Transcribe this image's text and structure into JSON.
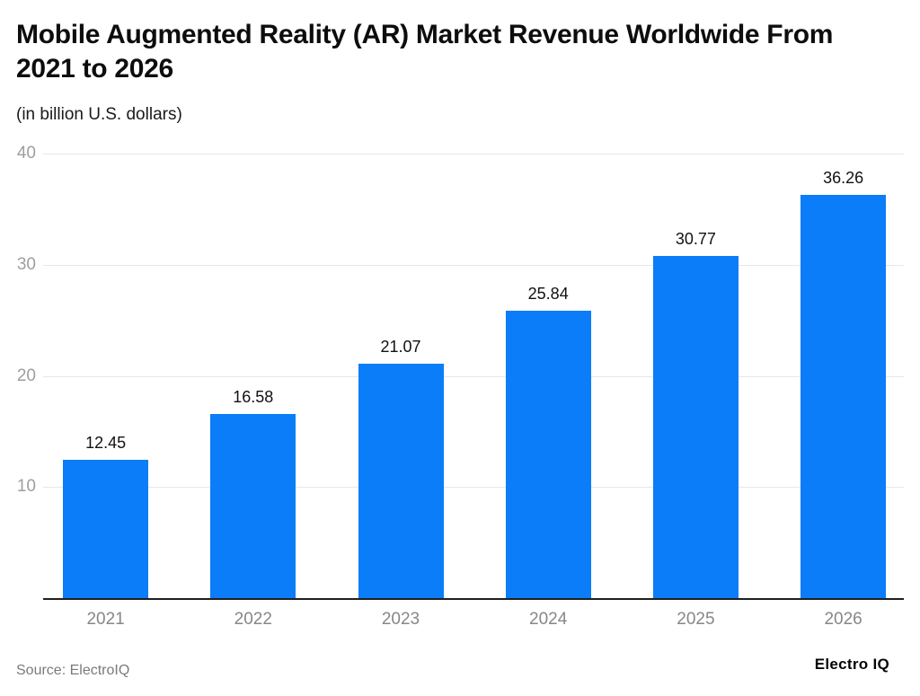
{
  "header": {
    "title": "Mobile Augmented Reality (AR) Market Revenue Worldwide From 2021 to 2026",
    "subtitle": "(in billion U.S. dollars)"
  },
  "footer": {
    "source": "Source: ElectroIQ",
    "brand": "Electro IQ"
  },
  "colors": {
    "bar": "#0b7df8",
    "gridline": "#e7e7e7",
    "axis_line": "#1f1f1f",
    "ytick_text": "#9e9e9e",
    "xtick_text": "#878787",
    "value_label_text": "#111111",
    "background": "#ffffff"
  },
  "chart_data": {
    "type": "bar",
    "title": "Mobile Augmented Reality (AR) Market Revenue Worldwide From 2021 to 2026",
    "subtitle": "(in billion U.S. dollars)",
    "categories": [
      "2021",
      "2022",
      "2023",
      "2024",
      "2025",
      "2026"
    ],
    "values": [
      12.45,
      16.58,
      21.07,
      25.84,
      30.77,
      36.26
    ],
    "value_labels": [
      "12.45",
      "16.58",
      "21.07",
      "25.84",
      "30.77",
      "36.26"
    ],
    "xlabel": "",
    "ylabel": "",
    "ylim": [
      0,
      40
    ],
    "yticks": [
      10,
      20,
      30,
      40
    ],
    "grid": true,
    "legend": false,
    "bar_color": "#0b7df8",
    "source": "Source: ElectroIQ"
  }
}
